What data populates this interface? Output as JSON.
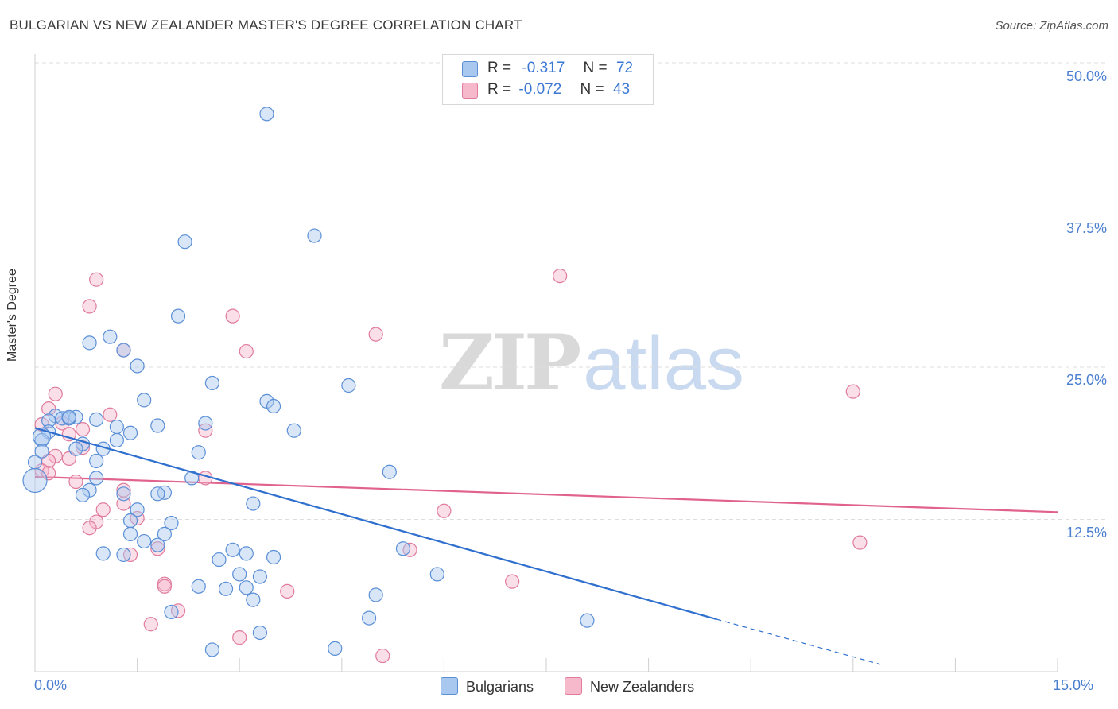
{
  "header": {
    "title": "BULGARIAN VS NEW ZEALANDER MASTER'S DEGREE CORRELATION CHART",
    "source": "Source: ZipAtlas.com"
  },
  "watermark": {
    "zip": "ZIP",
    "atlas": "atlas"
  },
  "legend_top": {
    "rows": [
      {
        "r_label": "R =",
        "r_value": "-0.317",
        "n_label": "N =",
        "n_value": "72",
        "color": "#a9c8f0"
      },
      {
        "r_label": "R =",
        "r_value": "-0.072",
        "n_label": "N =",
        "n_value": "43",
        "color": "#f6b9cc"
      }
    ]
  },
  "legend_bottom": {
    "items": [
      "Bulgarians",
      "New Zealanders"
    ]
  },
  "colors": {
    "blue_fill": "#a9c8f0",
    "blue_stroke": "#5b8fd6",
    "blue_line": "#2f6fce",
    "pink_fill": "#f6b9cc",
    "pink_stroke": "#e07b9c",
    "pink_line": "#e0628d",
    "grid": "#dddddd",
    "axis_text": "#4a7fd0"
  },
  "chart_data": {
    "type": "scatter",
    "title": "BULGARIAN VS NEW ZEALANDER MASTER'S DEGREE CORRELATION CHART",
    "xlabel": "",
    "ylabel": "Master's Degree",
    "xlim": [
      0,
      15
    ],
    "ylim": [
      0,
      50
    ],
    "x_tick_labels": [
      "0.0%",
      "15.0%"
    ],
    "y_ticks": [
      12.5,
      25.0,
      37.5,
      50.0
    ],
    "y_tick_labels": [
      "12.5%",
      "25.0%",
      "37.5%",
      "50.0%"
    ],
    "grid": true,
    "legend_position": "bottom",
    "series": [
      {
        "name": "Bulgarians",
        "color": "#a9c8f0",
        "points": [
          [
            3.4,
            45.8
          ],
          [
            4.1,
            35.8
          ],
          [
            2.2,
            35.3
          ],
          [
            2.1,
            29.2
          ],
          [
            1.1,
            27.5
          ],
          [
            0.8,
            27.0
          ],
          [
            1.3,
            26.4
          ],
          [
            1.5,
            25.1
          ],
          [
            2.6,
            23.7
          ],
          [
            4.6,
            23.5
          ],
          [
            1.6,
            22.3
          ],
          [
            3.4,
            22.2
          ],
          [
            3.5,
            21.8
          ],
          [
            0.3,
            21.0
          ],
          [
            0.4,
            20.8
          ],
          [
            0.6,
            20.9
          ],
          [
            0.9,
            20.7
          ],
          [
            0.2,
            20.6
          ],
          [
            0.5,
            20.8
          ],
          [
            1.8,
            20.2
          ],
          [
            2.5,
            20.4
          ],
          [
            1.2,
            20.1
          ],
          [
            3.8,
            19.8
          ],
          [
            0.2,
            19.7
          ],
          [
            1.4,
            19.6
          ],
          [
            0.1,
            19.0
          ],
          [
            1.2,
            19.0
          ],
          [
            0.7,
            18.7
          ],
          [
            0.6,
            18.3
          ],
          [
            1.0,
            18.3
          ],
          [
            2.4,
            18.0
          ],
          [
            0.9,
            17.3
          ],
          [
            0.0,
            17.2
          ],
          [
            5.2,
            16.4
          ],
          [
            2.3,
            15.9
          ],
          [
            0.9,
            15.9
          ],
          [
            0.8,
            14.9
          ],
          [
            0.7,
            14.5
          ],
          [
            1.3,
            14.6
          ],
          [
            1.9,
            14.7
          ],
          [
            1.8,
            14.6
          ],
          [
            3.2,
            13.8
          ],
          [
            1.5,
            13.3
          ],
          [
            1.4,
            12.4
          ],
          [
            2.0,
            12.2
          ],
          [
            1.4,
            11.3
          ],
          [
            1.9,
            11.3
          ],
          [
            1.6,
            10.7
          ],
          [
            1.8,
            10.4
          ],
          [
            2.9,
            10.0
          ],
          [
            3.1,
            9.7
          ],
          [
            3.5,
            9.4
          ],
          [
            5.4,
            10.1
          ],
          [
            1.0,
            9.7
          ],
          [
            1.3,
            9.6
          ],
          [
            2.7,
            9.2
          ],
          [
            3.0,
            8.0
          ],
          [
            5.9,
            8.0
          ],
          [
            3.3,
            7.8
          ],
          [
            2.4,
            7.0
          ],
          [
            2.8,
            6.8
          ],
          [
            3.1,
            6.9
          ],
          [
            5.0,
            6.3
          ],
          [
            3.2,
            5.9
          ],
          [
            2.0,
            4.9
          ],
          [
            4.9,
            4.4
          ],
          [
            8.1,
            4.2
          ],
          [
            3.3,
            3.2
          ],
          [
            2.6,
            1.8
          ],
          [
            4.4,
            1.9
          ],
          [
            0.1,
            18.1
          ],
          [
            0.5,
            20.9
          ]
        ],
        "trend": {
          "x": [
            0.0,
            10.0
          ],
          "y": [
            20.0,
            4.3
          ],
          "dashed_to": [
            12.4,
            0.6
          ]
        }
      },
      {
        "name": "New Zealanders",
        "color": "#f6b9cc",
        "points": [
          [
            0.9,
            32.2
          ],
          [
            7.7,
            32.5
          ],
          [
            0.8,
            30.0
          ],
          [
            2.9,
            29.2
          ],
          [
            5.0,
            27.7
          ],
          [
            1.3,
            26.4
          ],
          [
            3.1,
            26.3
          ],
          [
            12.0,
            23.0
          ],
          [
            0.3,
            22.8
          ],
          [
            0.2,
            21.6
          ],
          [
            1.1,
            21.1
          ],
          [
            0.4,
            20.4
          ],
          [
            0.1,
            20.3
          ],
          [
            2.5,
            19.8
          ],
          [
            0.7,
            19.9
          ],
          [
            0.5,
            19.5
          ],
          [
            0.7,
            18.4
          ],
          [
            0.3,
            17.7
          ],
          [
            0.5,
            17.5
          ],
          [
            0.2,
            17.3
          ],
          [
            0.1,
            16.5
          ],
          [
            0.2,
            16.3
          ],
          [
            2.5,
            15.9
          ],
          [
            0.6,
            15.6
          ],
          [
            1.3,
            14.9
          ],
          [
            1.3,
            13.8
          ],
          [
            1.0,
            13.3
          ],
          [
            6.0,
            13.2
          ],
          [
            1.5,
            12.6
          ],
          [
            0.9,
            12.3
          ],
          [
            0.8,
            11.8
          ],
          [
            12.1,
            10.6
          ],
          [
            1.8,
            10.1
          ],
          [
            5.5,
            10.0
          ],
          [
            1.4,
            9.6
          ],
          [
            7.0,
            7.4
          ],
          [
            1.9,
            7.2
          ],
          [
            1.9,
            7.0
          ],
          [
            3.7,
            6.6
          ],
          [
            2.1,
            5.0
          ],
          [
            1.7,
            3.9
          ],
          [
            3.0,
            2.8
          ],
          [
            5.1,
            1.3
          ]
        ],
        "trend": {
          "x": [
            0.0,
            15.0
          ],
          "y": [
            16.0,
            13.1
          ]
        }
      }
    ]
  }
}
